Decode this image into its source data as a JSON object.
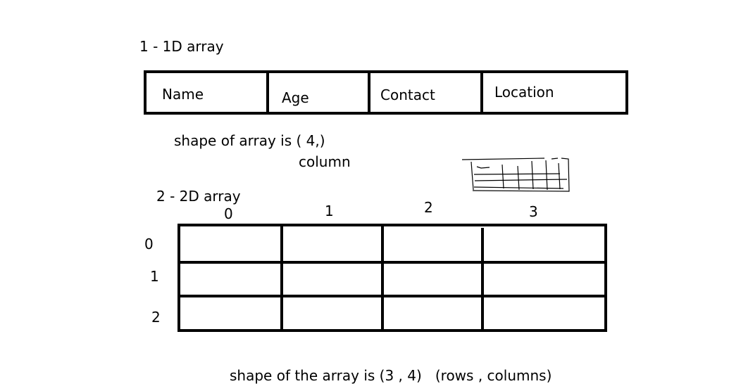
{
  "heading_1d": "1 - 1D array",
  "table_1d": {
    "cells": [
      "Name",
      "Age",
      "Contact",
      "Location"
    ]
  },
  "shape_1d": {
    "text": "shape of array is ( 4,)",
    "axis_label": "column"
  },
  "heading_2d": "2 - 2D array",
  "grid_2d": {
    "column_indices": [
      "0",
      "1",
      "2",
      "3"
    ],
    "row_indices": [
      "0",
      "1",
      "2"
    ]
  },
  "shape_2d": {
    "text": "shape of the array is (3 , 4)   (rows , columns)"
  }
}
